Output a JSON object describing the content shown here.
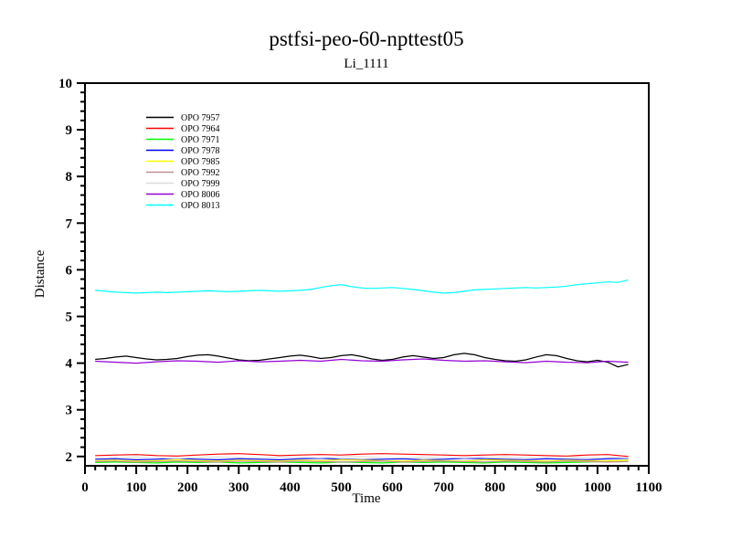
{
  "chart_data": {
    "type": "line",
    "title": "pstfsi-peo-60-npttest05",
    "subtitle": "Li_1111",
    "xlabel": "Time",
    "ylabel": "Distance",
    "xlim": [
      0,
      1100
    ],
    "ylim": [
      1.8,
      10
    ],
    "x_major_tick_step": 100,
    "x_minor_tick_step": 20,
    "y_major_tick_start": 2,
    "y_major_tick_step": 1,
    "y_minor_tick_step": 0.2,
    "grid": false,
    "tick_direction": "out",
    "legend_position": "upper-left-inside",
    "frame_color": "#000000",
    "background_color": "#FFFFFF",
    "series": [
      {
        "name": "OPO 7957",
        "color": "#000000",
        "x_start": 20,
        "x_step": 20,
        "values": [
          4.08,
          4.1,
          4.13,
          4.15,
          4.12,
          4.09,
          4.07,
          4.08,
          4.1,
          4.14,
          4.17,
          4.18,
          4.15,
          4.11,
          4.07,
          4.05,
          4.06,
          4.09,
          4.12,
          4.15,
          4.17,
          4.14,
          4.1,
          4.12,
          4.16,
          4.18,
          4.14,
          4.09,
          4.06,
          4.08,
          4.13,
          4.16,
          4.13,
          4.1,
          4.12,
          4.18,
          4.21,
          4.18,
          4.12,
          4.08,
          4.05,
          4.04,
          4.07,
          4.13,
          4.18,
          4.16,
          4.1,
          4.05,
          4.03,
          4.06,
          4.02,
          3.92,
          3.97
        ]
      },
      {
        "name": "OPO 7964",
        "color": "#FF0000",
        "x_start": 20,
        "x_step": 40,
        "values": [
          2.02,
          2.03,
          2.04,
          2.02,
          2.01,
          2.03,
          2.05,
          2.06,
          2.04,
          2.02,
          2.03,
          2.04,
          2.03,
          2.05,
          2.06,
          2.05,
          2.04,
          2.03,
          2.02,
          2.03,
          2.04,
          2.03,
          2.02,
          2.01,
          2.03,
          2.04,
          2.0
        ]
      },
      {
        "name": "OPO 7971",
        "color": "#00FF00",
        "x_start": 20,
        "x_step": 40,
        "values": [
          1.87,
          1.88,
          1.87,
          1.86,
          1.88,
          1.87,
          1.88,
          1.86,
          1.87,
          1.88,
          1.87,
          1.86,
          1.88,
          1.87,
          1.86,
          1.88,
          1.87,
          1.88,
          1.87,
          1.86,
          1.88,
          1.87,
          1.86,
          1.87,
          1.88,
          1.9,
          1.92
        ]
      },
      {
        "name": "OPO 7978",
        "color": "#0000FF",
        "x_start": 20,
        "x_step": 40,
        "values": [
          1.94,
          1.95,
          1.93,
          1.94,
          1.96,
          1.94,
          1.93,
          1.95,
          1.94,
          1.93,
          1.95,
          1.96,
          1.94,
          1.93,
          1.94,
          1.95,
          1.93,
          1.94,
          1.96,
          1.95,
          1.94,
          1.93,
          1.95,
          1.94,
          1.93,
          1.95,
          1.96
        ]
      },
      {
        "name": "OPO 7985",
        "color": "#FFFF00",
        "x_start": 20,
        "x_step": 40,
        "values": [
          1.91,
          1.92,
          1.9,
          1.91,
          1.93,
          1.91,
          1.9,
          1.92,
          1.91,
          1.9,
          1.92,
          1.91,
          1.93,
          1.92,
          1.91,
          1.9,
          1.92,
          1.91,
          1.9,
          1.93,
          1.92,
          1.91,
          1.9,
          1.92,
          1.91,
          1.9,
          1.92
        ]
      },
      {
        "name": "OPO 7992",
        "color": "#BC8F8F",
        "x_start": 20,
        "x_step": 40,
        "values": [
          1.89,
          1.9,
          1.88,
          1.89,
          1.9,
          1.89,
          1.88,
          1.9,
          1.89,
          1.88,
          1.9,
          1.89,
          1.88,
          1.89,
          1.9,
          1.88,
          1.89,
          1.9,
          1.89,
          1.88,
          1.9,
          1.89,
          1.88,
          1.9,
          1.89,
          1.88,
          1.89
        ]
      },
      {
        "name": "OPO 7999",
        "color": "#DCDCDC",
        "x_start": 20,
        "x_step": 40,
        "values": [
          1.97,
          1.98,
          1.99,
          1.97,
          1.96,
          1.98,
          1.99,
          1.98,
          1.97,
          1.99,
          1.98,
          1.97,
          1.99,
          2.0,
          1.98,
          1.97,
          1.99,
          1.98,
          1.97,
          1.98,
          1.99,
          1.97,
          1.98,
          1.99,
          1.97,
          1.98,
          1.97
        ]
      },
      {
        "name": "OPO 8006",
        "color": "#9400D3",
        "x_start": 20,
        "x_step": 40,
        "values": [
          4.04,
          4.02,
          4.0,
          4.03,
          4.05,
          4.04,
          4.02,
          4.05,
          4.03,
          4.04,
          4.06,
          4.04,
          4.08,
          4.05,
          4.04,
          4.07,
          4.09,
          4.06,
          4.04,
          4.05,
          4.03,
          4.01,
          4.04,
          4.02,
          4.01,
          4.04,
          4.02
        ]
      },
      {
        "name": "OPO 8013",
        "color": "#00FFFF",
        "x_start": 20,
        "x_step": 20,
        "values": [
          5.56,
          5.54,
          5.52,
          5.51,
          5.5,
          5.51,
          5.52,
          5.51,
          5.52,
          5.53,
          5.54,
          5.55,
          5.54,
          5.53,
          5.54,
          5.55,
          5.56,
          5.55,
          5.54,
          5.55,
          5.56,
          5.58,
          5.62,
          5.66,
          5.68,
          5.64,
          5.61,
          5.6,
          5.61,
          5.62,
          5.6,
          5.58,
          5.55,
          5.52,
          5.5,
          5.51,
          5.54,
          5.57,
          5.58,
          5.59,
          5.6,
          5.61,
          5.62,
          5.61,
          5.62,
          5.63,
          5.65,
          5.68,
          5.7,
          5.72,
          5.74,
          5.73,
          5.78
        ]
      }
    ]
  }
}
